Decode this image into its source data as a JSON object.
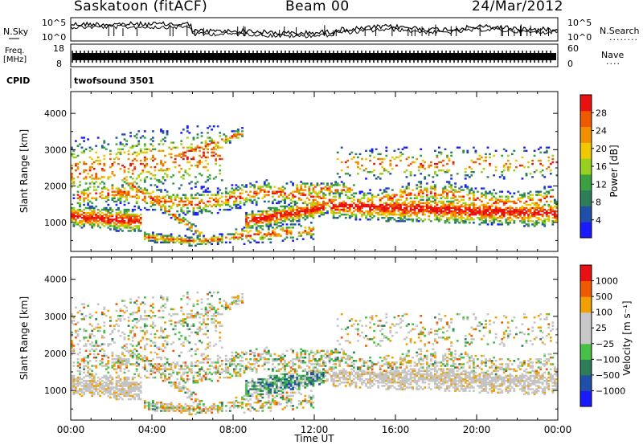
{
  "header": {
    "station": "Saskatoon (fitACF)",
    "beam": "Beam 00",
    "date": "24/Mar/2012"
  },
  "strip_labels": {
    "nsky": "N.Sky",
    "nsearch": "N.Search",
    "nsearch_dots": "........",
    "freq_line1": "Freq.",
    "freq_line2": "[MHz]",
    "nave": "Nave",
    "nave_dots": "....",
    "cpid": "CPID",
    "cpid_value": "twofsound 3501"
  },
  "strip_ticks": {
    "noise_left": [
      "10^5",
      "10^0"
    ],
    "noise_right": [
      "10^5",
      "10^0"
    ],
    "freq_left": [
      "18",
      "8"
    ],
    "nave_right": [
      "60",
      "0"
    ]
  },
  "colors": {
    "power_scale": [
      "#1a1aff",
      "#1f4fa8",
      "#2e7d5a",
      "#3aa040",
      "#98d020",
      "#f0c800",
      "#f09000",
      "#ef5a00",
      "#e81010"
    ],
    "velocity_scale": [
      "#1a1aff",
      "#1f4fa8",
      "#2e7d5a",
      "#46c046",
      "#c8c8c8",
      "#c8c8c8",
      "#f0a000",
      "#ef5a00",
      "#e81010"
    ],
    "ground_scatter": "#c4c4c4",
    "axis": "#000000"
  },
  "chart_data": [
    {
      "type": "heatmap",
      "panel": "power",
      "xlabel": "",
      "ylabel": "Slant Range [km]",
      "x_ticks": [
        "00:00",
        "04:00",
        "08:00",
        "12:00",
        "16:00",
        "20:00",
        "00:00"
      ],
      "y_ticks": [
        1000,
        2000,
        3000,
        4000
      ],
      "ylim": [
        200,
        4600
      ],
      "xlim_hours": [
        0,
        24
      ],
      "colorbar_label": "Power [dB]",
      "colorbar_ticks": [
        4,
        8,
        12,
        16,
        20,
        24,
        28
      ],
      "colorbar_range": [
        0,
        32
      ]
    },
    {
      "type": "heatmap",
      "panel": "velocity",
      "xlabel": "Time UT",
      "ylabel": "Slant Range [km]",
      "x_ticks": [
        "00:00",
        "04:00",
        "08:00",
        "12:00",
        "16:00",
        "20:00",
        "00:00"
      ],
      "y_ticks": [
        1000,
        2000,
        3000,
        4000
      ],
      "ylim": [
        200,
        4600
      ],
      "xlim_hours": [
        0,
        24
      ],
      "colorbar_label": "Velocity [m s⁻¹]",
      "colorbar_ticks": [
        "1000",
        "500",
        "100",
        "25",
        "−25",
        "−100",
        "−500",
        "−1000"
      ]
    }
  ]
}
